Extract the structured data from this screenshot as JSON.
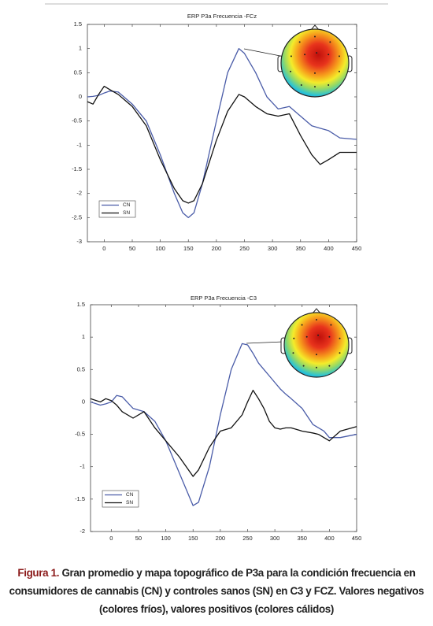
{
  "chart_data": [
    {
      "type": "line",
      "title": "ERP P3a Frecuencia -FCz",
      "x": [
        -30,
        -20,
        -10,
        0,
        10,
        25,
        50,
        75,
        100,
        125,
        140,
        150,
        160,
        175,
        200,
        220,
        240,
        250,
        270,
        290,
        310,
        330,
        350,
        370,
        385,
        400,
        420,
        450
      ],
      "series": [
        {
          "name": "CN",
          "color": "#4a5ca8",
          "values": [
            0,
            0.01,
            0.03,
            0.08,
            0.12,
            0.1,
            -0.15,
            -0.5,
            -1.2,
            -2.0,
            -2.4,
            -2.5,
            -2.4,
            -1.8,
            -0.5,
            0.5,
            1.0,
            0.9,
            0.5,
            0.0,
            -0.25,
            -0.2,
            -0.4,
            -0.6,
            -0.65,
            -0.7,
            -0.85,
            -0.88
          ]
        },
        {
          "name": "SN",
          "color": "#111111",
          "values": [
            -0.1,
            -0.15,
            0.05,
            0.22,
            0.15,
            0.05,
            -0.2,
            -0.6,
            -1.3,
            -1.9,
            -2.15,
            -2.2,
            -2.15,
            -1.8,
            -0.9,
            -0.3,
            0.05,
            0.0,
            -0.2,
            -0.35,
            -0.4,
            -0.35,
            -0.8,
            -1.2,
            -1.4,
            -1.3,
            -1.15,
            -1.15
          ]
        }
      ],
      "xlim": [
        -30,
        450
      ],
      "xticks": [
        0,
        50,
        100,
        150,
        200,
        250,
        300,
        350,
        400,
        450
      ],
      "ylim": [
        -3,
        1.5
      ],
      "yticks": [
        1.5,
        1,
        0.5,
        0,
        -0.5,
        -1,
        -1.5,
        -2,
        -2.5,
        -3
      ],
      "legend": "lower left"
    },
    {
      "type": "line",
      "title": "ERP P3a Frecuencia -C3",
      "x": [
        -38,
        -20,
        -10,
        0,
        10,
        20,
        40,
        60,
        80,
        100,
        125,
        150,
        160,
        180,
        200,
        220,
        240,
        250,
        260,
        270,
        280,
        290,
        300,
        310,
        320,
        330,
        350,
        370,
        380,
        390,
        400,
        420,
        450
      ],
      "series": [
        {
          "name": "CN",
          "color": "#4a5ca8",
          "values": [
            0,
            -0.05,
            -0.03,
            0,
            0.1,
            0.08,
            -0.1,
            -0.15,
            -0.3,
            -0.6,
            -1.1,
            -1.6,
            -1.55,
            -1.0,
            -0.2,
            0.5,
            0.9,
            0.88,
            0.75,
            0.6,
            0.5,
            0.4,
            0.3,
            0.2,
            0.12,
            0.05,
            -0.1,
            -0.35,
            -0.4,
            -0.45,
            -0.55,
            -0.55,
            -0.5
          ]
        },
        {
          "name": "SN",
          "color": "#111111",
          "values": [
            0.05,
            0,
            0.05,
            0.02,
            -0.05,
            -0.15,
            -0.25,
            -0.15,
            -0.4,
            -0.6,
            -0.85,
            -1.15,
            -1.05,
            -0.7,
            -0.45,
            -0.4,
            -0.2,
            0.0,
            0.18,
            0.05,
            -0.1,
            -0.3,
            -0.4,
            -0.42,
            -0.4,
            -0.4,
            -0.45,
            -0.48,
            -0.5,
            -0.55,
            -0.6,
            -0.45,
            -0.38
          ]
        }
      ],
      "xlim": [
        -38,
        450
      ],
      "xticks": [
        0,
        50,
        100,
        150,
        200,
        250,
        300,
        350,
        400,
        450
      ],
      "ylim": [
        -2,
        1.5
      ],
      "yticks": [
        1.5,
        1,
        0.5,
        0,
        -0.5,
        -1,
        -1.5,
        -2
      ],
      "legend": "lower left"
    }
  ],
  "caption": {
    "label": "Figura 1.",
    "text": "Gran promedio y mapa topográfico de P3a para la condición frecuencia en consumidores de cannabis (CN) y controles sanos (SN) en C3 y FCZ. Valores negativos (colores fríos), valores positivos (colores cálidos)"
  }
}
